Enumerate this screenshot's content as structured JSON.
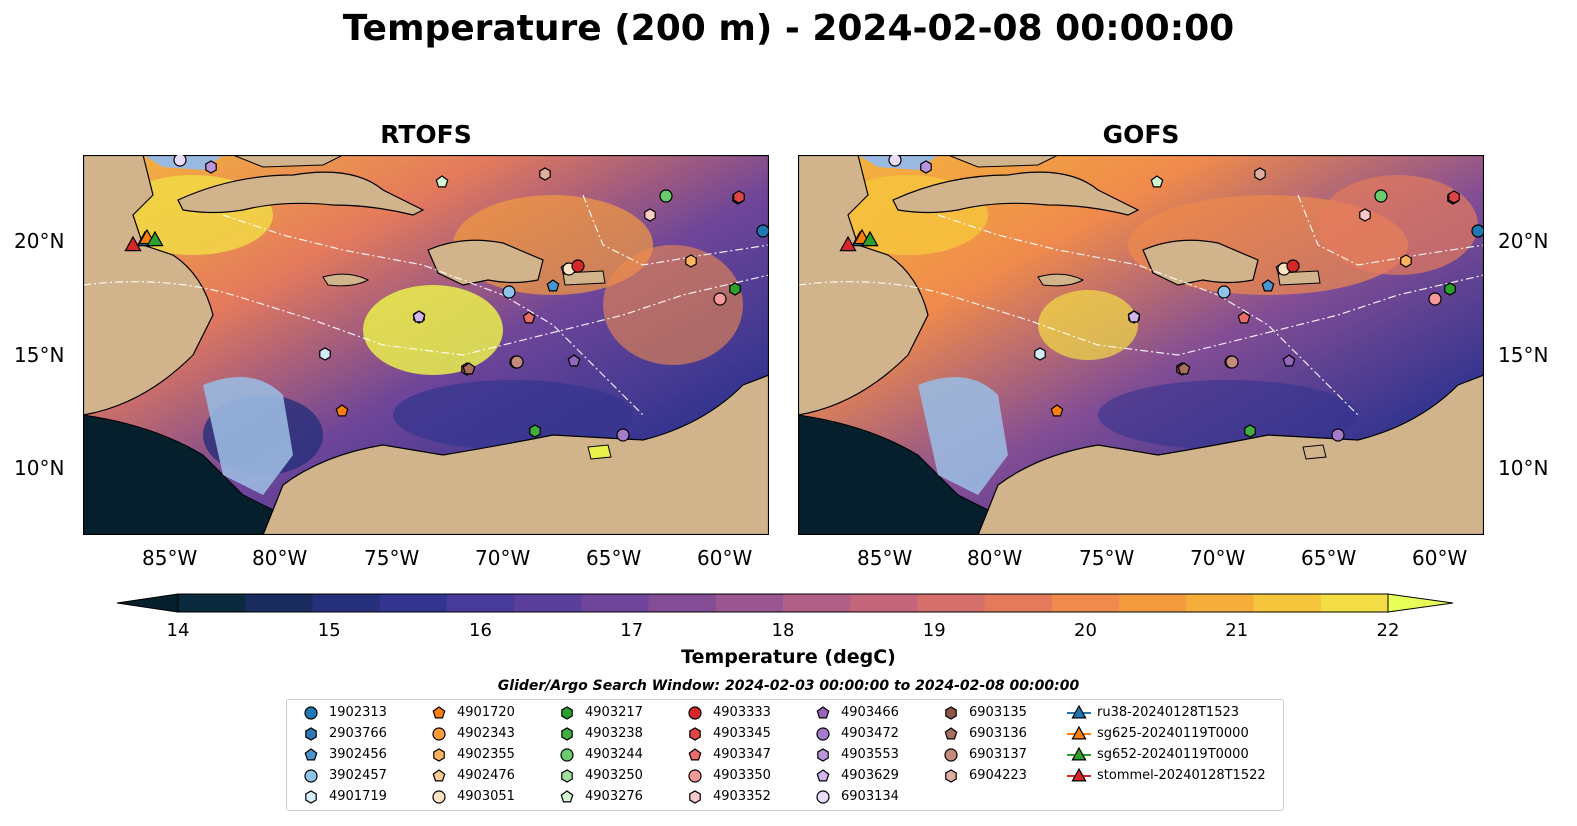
{
  "title": "Temperature (200 m) - 2024-02-08 00:00:00",
  "panels": [
    {
      "title": "RTOFS"
    },
    {
      "title": "GOFS"
    }
  ],
  "lat_labels": [
    "20°N",
    "15°N",
    "10°N"
  ],
  "lon_labels": [
    "85°W",
    "80°W",
    "75°W",
    "70°W",
    "65°W",
    "60°W"
  ],
  "colorbar": {
    "label": "Temperature (degC)",
    "ticks": [
      "14",
      "15",
      "16",
      "17",
      "18",
      "19",
      "20",
      "21",
      "22"
    ],
    "min": 14,
    "max": 22,
    "colors": [
      "#0a2a3d",
      "#1a2b5e",
      "#262f7a",
      "#33348f",
      "#483a9a",
      "#5b3f9d",
      "#6e4599",
      "#824d95",
      "#9a5690",
      "#b05f87",
      "#c4667b",
      "#d56f6c",
      "#e47a5c",
      "#ef8a4c",
      "#f49b40",
      "#f6ae3a",
      "#f6c53c",
      "#f3dd45"
    ],
    "extend_low": "#061f2d",
    "extend_high": "#e8ff59"
  },
  "search_window": "Glider/Argo Search Window: 2024-02-03 00:00:00 to 2024-02-08 00:00:00",
  "map_colors": {
    "land": "#d2b48c",
    "shelf": "#9ab9e0",
    "ocean_deep": "#6e4599"
  },
  "legend": [
    {
      "label": "1902313",
      "marker": "circle",
      "color": "#1f77b4"
    },
    {
      "label": "2903766",
      "marker": "hexagon",
      "color": "#2f78b6"
    },
    {
      "label": "3902456",
      "marker": "pentagon",
      "color": "#4a95d0"
    },
    {
      "label": "3902457",
      "marker": "circle",
      "color": "#8fc3ea"
    },
    {
      "label": "4901719",
      "marker": "hexagon",
      "color": "#d4ecfa"
    },
    {
      "label": "4901720",
      "marker": "pentagon",
      "color": "#ff7f0e"
    },
    {
      "label": "4902343",
      "marker": "circle",
      "color": "#ff9a3c"
    },
    {
      "label": "4902355",
      "marker": "hexagon",
      "color": "#ffb35e"
    },
    {
      "label": "4902476",
      "marker": "pentagon",
      "color": "#ffcb94"
    },
    {
      "label": "4903051",
      "marker": "circle",
      "color": "#ffe3c4"
    },
    {
      "label": "4903217",
      "marker": "hexagon",
      "color": "#2ca02c"
    },
    {
      "label": "4903238",
      "marker": "hexagon",
      "color": "#3fae3f"
    },
    {
      "label": "4903244",
      "marker": "circle",
      "color": "#6ccb6c"
    },
    {
      "label": "4903250",
      "marker": "hexagon",
      "color": "#9ee39e"
    },
    {
      "label": "4903276",
      "marker": "pentagon",
      "color": "#d4f7d4"
    },
    {
      "label": "4903333",
      "marker": "circle",
      "color": "#d62728"
    },
    {
      "label": "4903345",
      "marker": "hexagon",
      "color": "#e04546"
    },
    {
      "label": "4903347",
      "marker": "pentagon",
      "color": "#eb6b6b"
    },
    {
      "label": "4903350",
      "marker": "circle",
      "color": "#f59a9a"
    },
    {
      "label": "4903352",
      "marker": "hexagon",
      "color": "#fcc9c9"
    },
    {
      "label": "4903466",
      "marker": "pentagon",
      "color": "#9467bd"
    },
    {
      "label": "4903472",
      "marker": "circle",
      "color": "#a57ccc"
    },
    {
      "label": "4903553",
      "marker": "hexagon",
      "color": "#b996dc"
    },
    {
      "label": "4903629",
      "marker": "pentagon",
      "color": "#d2b6ee"
    },
    {
      "label": "6903134",
      "marker": "circle",
      "color": "#ecdcfc"
    },
    {
      "label": "6903135",
      "marker": "hexagon",
      "color": "#8c564b"
    },
    {
      "label": "6903136",
      "marker": "pentagon",
      "color": "#a86e60"
    },
    {
      "label": "6903137",
      "marker": "circle",
      "color": "#c48a7a"
    },
    {
      "label": "6904223",
      "marker": "hexagon",
      "color": "#dfaea1"
    },
    {
      "label": "ru38-20240128T1523",
      "marker": "triangle-line",
      "color": "#1f77b4"
    },
    {
      "label": "sg625-20240119T0000",
      "marker": "triangle-line",
      "color": "#ff7f0e"
    },
    {
      "label": "sg652-20240119T0000",
      "marker": "triangle-line",
      "color": "#2ca02c"
    },
    {
      "label": "stommel-20240128T1522",
      "marker": "triangle-line",
      "color": "#d62728"
    }
  ]
}
